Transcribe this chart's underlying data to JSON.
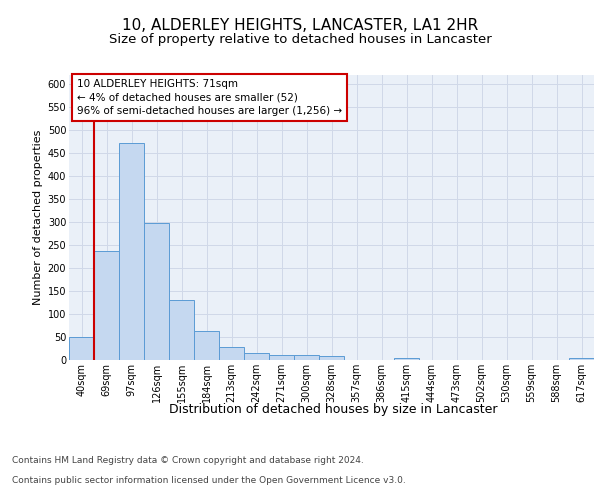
{
  "title": "10, ALDERLEY HEIGHTS, LANCASTER, LA1 2HR",
  "subtitle": "Size of property relative to detached houses in Lancaster",
  "xlabel": "Distribution of detached houses by size in Lancaster",
  "ylabel": "Number of detached properties",
  "categories": [
    "40sqm",
    "69sqm",
    "97sqm",
    "126sqm",
    "155sqm",
    "184sqm",
    "213sqm",
    "242sqm",
    "271sqm",
    "300sqm",
    "328sqm",
    "357sqm",
    "386sqm",
    "415sqm",
    "444sqm",
    "473sqm",
    "502sqm",
    "530sqm",
    "559sqm",
    "588sqm",
    "617sqm"
  ],
  "values": [
    50,
    237,
    473,
    298,
    130,
    63,
    28,
    16,
    10,
    10,
    8,
    0,
    0,
    5,
    0,
    0,
    0,
    0,
    0,
    0,
    5
  ],
  "bar_color": "#c5d8f0",
  "bar_edge_color": "#5b9bd5",
  "property_line_color": "#cc0000",
  "annotation_text": "10 ALDERLEY HEIGHTS: 71sqm\n← 4% of detached houses are smaller (52)\n96% of semi-detached houses are larger (1,256) →",
  "annotation_box_color": "#cc0000",
  "ylim": [
    0,
    620
  ],
  "yticks": [
    0,
    50,
    100,
    150,
    200,
    250,
    300,
    350,
    400,
    450,
    500,
    550,
    600
  ],
  "grid_color": "#d0d8e8",
  "background_color": "#eaf0f8",
  "footer_line1": "Contains HM Land Registry data © Crown copyright and database right 2024.",
  "footer_line2": "Contains public sector information licensed under the Open Government Licence v3.0.",
  "title_fontsize": 11,
  "subtitle_fontsize": 9.5,
  "xlabel_fontsize": 9,
  "ylabel_fontsize": 8,
  "tick_fontsize": 7,
  "annotation_fontsize": 7.5,
  "footer_fontsize": 6.5
}
